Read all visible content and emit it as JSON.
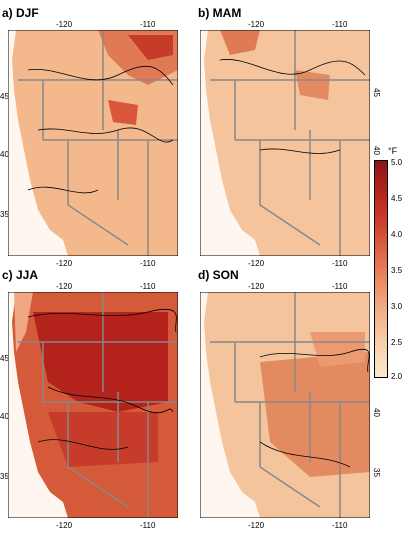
{
  "figure": {
    "panels": [
      {
        "id": "a",
        "title": "a) DJF",
        "lon_ticks": [
          "-120",
          "-110"
        ],
        "lat_ticks": [
          "45",
          "40",
          "35"
        ],
        "base": "#f3b98d",
        "accent": "#d9553b"
      },
      {
        "id": "b",
        "title": "b) MAM",
        "lon_ticks": [
          "-120",
          "-110"
        ],
        "lat_ticks": [
          "45",
          "40",
          "35"
        ],
        "base": "#f5c39c",
        "accent": "#e07a55"
      },
      {
        "id": "c",
        "title": "c) JJA",
        "lon_ticks": [
          "-120",
          "-110"
        ],
        "lat_ticks": [
          "45",
          "40",
          "35"
        ],
        "base": "#d45a3a",
        "accent": "#b3231c"
      },
      {
        "id": "d",
        "title": "d) SON",
        "lon_ticks": [
          "-120",
          "-110"
        ],
        "lat_ticks": [
          "45",
          "40",
          "35"
        ],
        "base": "#f4c49c",
        "accent": "#e48a60"
      }
    ],
    "colorbar": {
      "unit": "°F",
      "ticks": [
        "5.0",
        "4.5",
        "4.0",
        "3.5",
        "3.0",
        "2.5",
        "2.0"
      ],
      "colors": [
        "#8b1414",
        "#b3231c",
        "#d0402d",
        "#e0674a",
        "#ec8e66",
        "#f4b389",
        "#f8d2ad",
        "#fbe9d4"
      ]
    }
  }
}
